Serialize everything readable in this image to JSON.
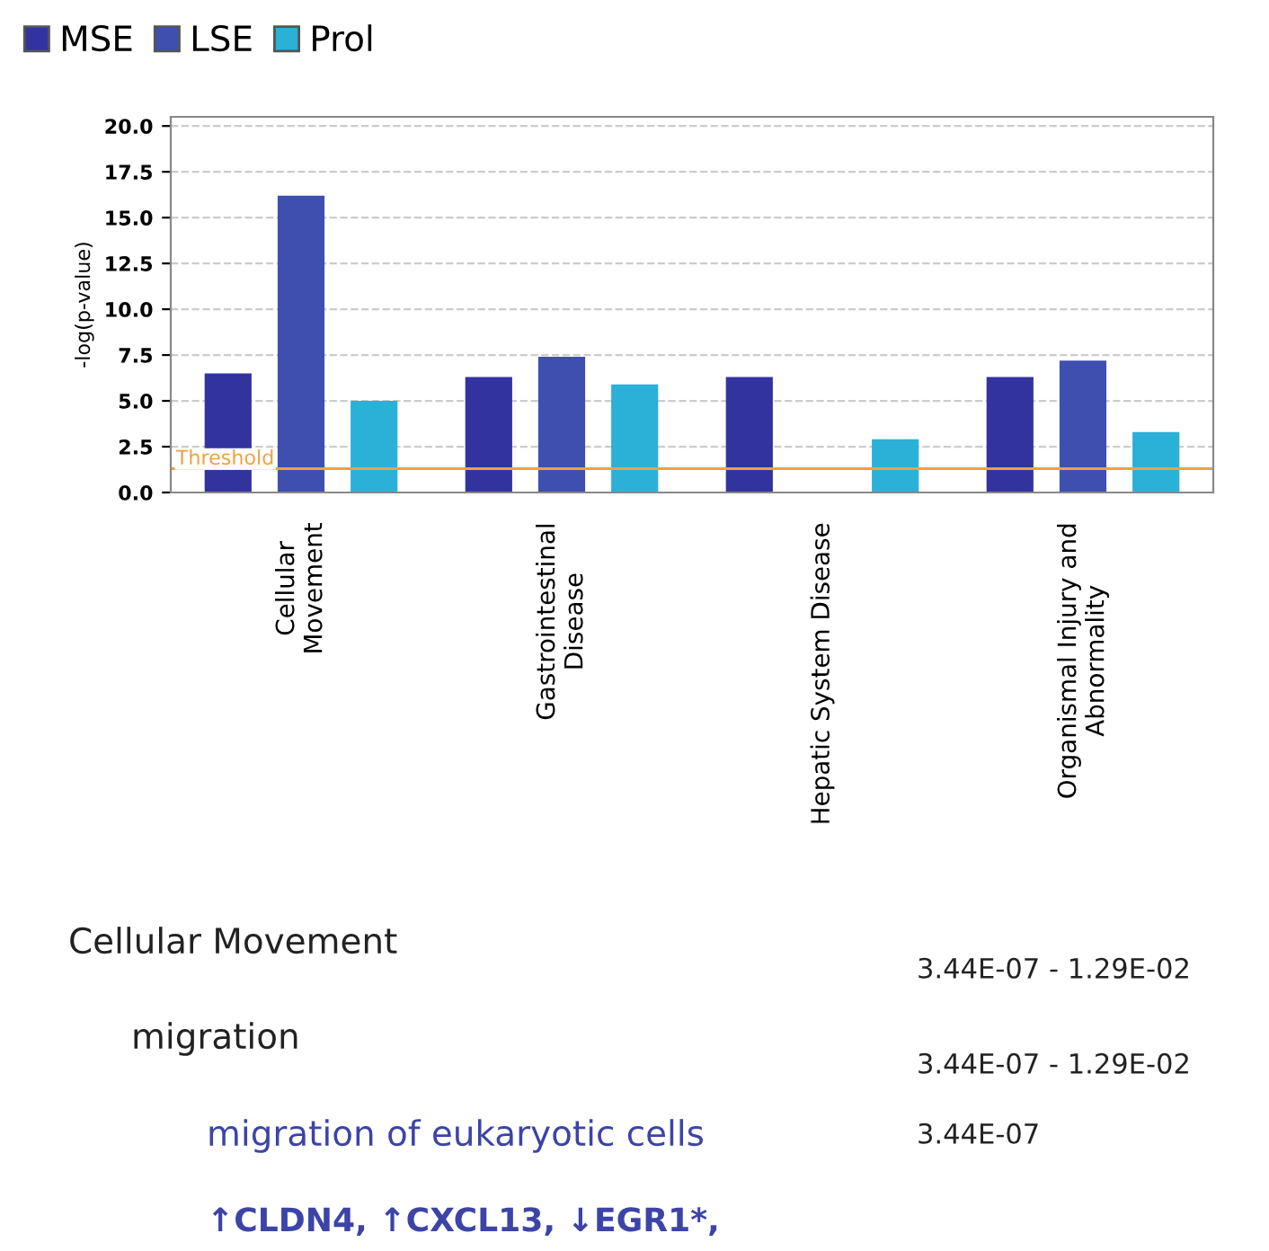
{
  "chart_data": {
    "type": "bar",
    "ylabel": "-log(p-value)",
    "categories": [
      "Cellular\nMovement",
      "Gastrointestinal\nDisease",
      "Hepatic System Disease",
      "Organismal Injury and\nAbnormality"
    ],
    "series": [
      {
        "name": "MSE",
        "color": "#3333a0",
        "values": [
          6.5,
          6.3,
          6.3,
          6.3
        ]
      },
      {
        "name": "LSE",
        "color": "#3f4fb0",
        "values": [
          16.2,
          7.4,
          null,
          7.2
        ]
      },
      {
        "name": "Prol",
        "color": "#2bb0d8",
        "values": [
          5.0,
          5.9,
          2.9,
          3.3
        ]
      }
    ],
    "ylim": [
      0,
      20.5
    ],
    "yticks": [
      {
        "value": 0,
        "label": "0.0"
      },
      {
        "value": 2.5,
        "label": "2.5"
      },
      {
        "value": 5,
        "label": "5.0"
      },
      {
        "value": 7.5,
        "label": "7.5"
      },
      {
        "value": 10,
        "label": "10.0"
      },
      {
        "value": 12.5,
        "label": "12.5"
      },
      {
        "value": 15,
        "label": "15.0"
      },
      {
        "value": 17.5,
        "label": "17.5"
      },
      {
        "value": 20,
        "label": "20.0"
      }
    ],
    "ref_lines": [
      {
        "axis": "y",
        "value": 1.3,
        "label": "Threshold",
        "color": "#f0a040"
      }
    ],
    "grid": "y",
    "legend": "top left",
    "annotations": [
      "Cellular Movement",
      "3.44E-07 - 1.29E-02",
      "migration",
      "3.44E-07 - 1.29E-02",
      "migration of eukaryotic cells",
      "3.44E-07",
      "↑CLDN4, ↑CXCL13, ↓EGR1*,"
    ]
  }
}
